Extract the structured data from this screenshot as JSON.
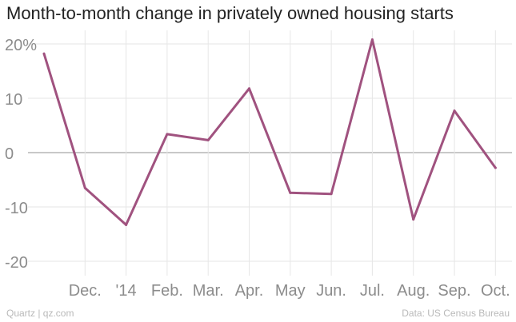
{
  "title": "Month-to-month change in privately owned housing starts",
  "footer": {
    "credit": "Quartz | qz.com",
    "source": "Data: US Census Bureau"
  },
  "colors": {
    "line": "#a0527f",
    "grid": "#e6e6e6",
    "zero": "#a6a6a6",
    "tick_text": "#8c8c8c"
  },
  "chart_data": {
    "type": "line",
    "title": "Month-to-month change in privately owned housing starts",
    "xlabel": "",
    "ylabel": "",
    "ylim": [
      -23,
      22
    ],
    "yticks": [
      20,
      10,
      0,
      -10,
      -20
    ],
    "ytick_labels": [
      "20%",
      "10",
      "0",
      "-10",
      "-20"
    ],
    "x_tick_labels": [
      "Dec.",
      "'14",
      "Feb.",
      "Mar.",
      "Apr.",
      "May",
      "Jun.",
      "Jul.",
      "Aug.",
      "Sep.",
      "Oct."
    ],
    "x": [
      "Nov. 2013",
      "Dec. 2013",
      "Jan. 2014",
      "Feb. 2014",
      "Mar. 2014",
      "Apr. 2014",
      "May 2014",
      "Jun. 2014",
      "Jul. 2014",
      "Aug. 2014",
      "Sep. 2014",
      "Oct. 2014"
    ],
    "values": [
      18.2,
      -6.5,
      -13.3,
      3.4,
      2.3,
      11.8,
      -7.4,
      -7.6,
      20.8,
      -12.3,
      7.7,
      -2.8
    ],
    "grid": true
  }
}
